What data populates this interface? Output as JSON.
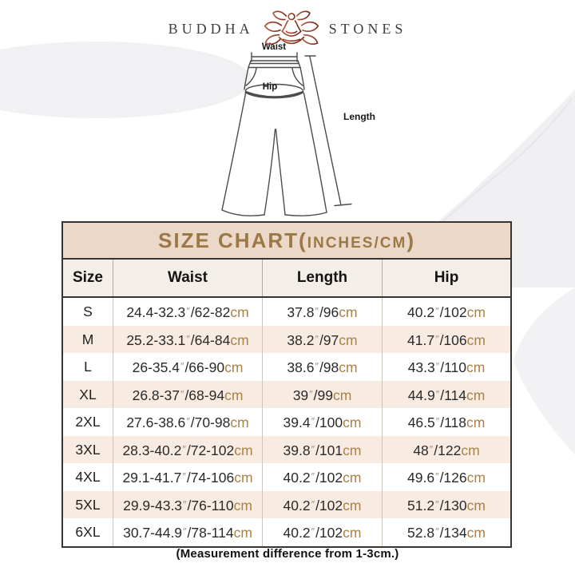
{
  "logo": {
    "text_left": "BUDDHA",
    "text_right": "STONES"
  },
  "diagram": {
    "waist_label": "Waist",
    "hip_label": "Hip",
    "length_label": "Length"
  },
  "size_chart": {
    "title_prefix": "SIZE CHART(",
    "title_inner": "INCHES/CM",
    "title_suffix": ")",
    "columns": [
      "Size",
      "Waist",
      "Length",
      "Hip"
    ],
    "unit_inch_mark": "″",
    "unit_cm": "cm",
    "rows": [
      {
        "size": "S",
        "waist_in": "24.4-32.3",
        "waist_cm": "62-82",
        "length_in": "37.8",
        "length_cm": "96",
        "hip_in": "40.2",
        "hip_cm": "102"
      },
      {
        "size": "M",
        "waist_in": "25.2-33.1",
        "waist_cm": "64-84",
        "length_in": "38.2",
        "length_cm": "97",
        "hip_in": "41.7",
        "hip_cm": "106"
      },
      {
        "size": "L",
        "waist_in": "26-35.4",
        "waist_cm": "66-90",
        "length_in": "38.6",
        "length_cm": "98",
        "hip_in": "43.3",
        "hip_cm": "110"
      },
      {
        "size": "XL",
        "waist_in": "26.8-37",
        "waist_cm": "68-94",
        "length_in": "39",
        "length_cm": "99",
        "hip_in": "44.9",
        "hip_cm": "114"
      },
      {
        "size": "2XL",
        "waist_in": "27.6-38.6",
        "waist_cm": "70-98",
        "length_in": "39.4",
        "length_cm": "100",
        "hip_in": "46.5",
        "hip_cm": "118"
      },
      {
        "size": "3XL",
        "waist_in": "28.3-40.2",
        "waist_cm": "72-102",
        "length_in": "39.8",
        "length_cm": "101",
        "hip_in": "48",
        "hip_cm": "122"
      },
      {
        "size": "4XL",
        "waist_in": "29.1-41.7",
        "waist_cm": "74-106",
        "length_in": "40.2",
        "length_cm": "102",
        "hip_in": "49.6",
        "hip_cm": "126"
      },
      {
        "size": "5XL",
        "waist_in": "29.9-43.3",
        "waist_cm": "76-110",
        "length_in": "40.2",
        "length_cm": "102",
        "hip_in": "51.2",
        "hip_cm": "130"
      },
      {
        "size": "6XL",
        "waist_in": "30.7-44.9",
        "waist_cm": "78-114",
        "length_in": "40.2",
        "length_cm": "102",
        "hip_in": "52.8",
        "hip_cm": "134"
      }
    ],
    "footnote": "(Measurement difference from 1-3cm.)"
  },
  "colors": {
    "title_text": "#9a7947",
    "title_bg": "#ebd8c9",
    "alt_row_bg": "#f8ebe1",
    "unit_text": "#aa8245",
    "logo_mark": "#a04a2e",
    "table_border": "#39342f"
  }
}
